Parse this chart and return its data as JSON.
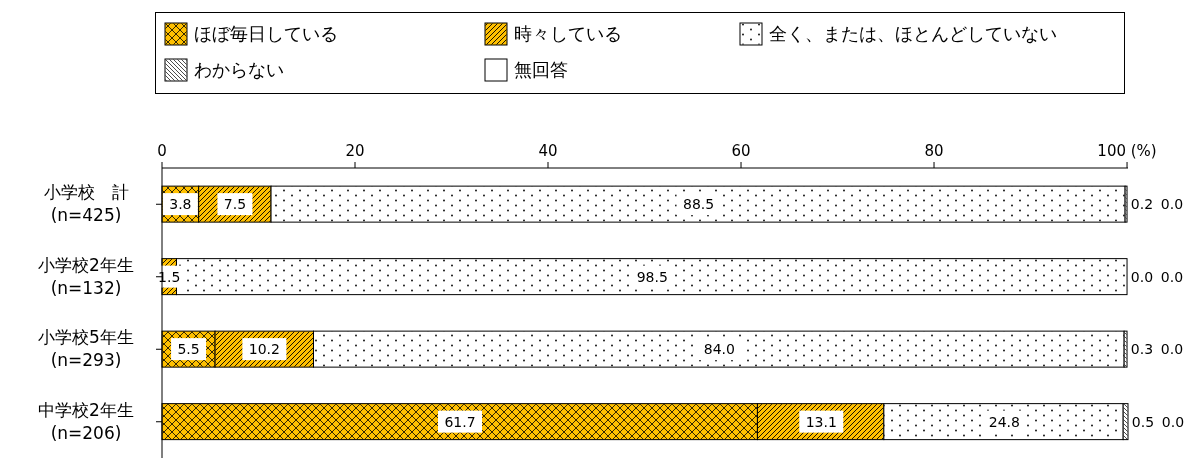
{
  "chart_data": {
    "type": "bar",
    "orientation": "horizontal",
    "stacked": true,
    "legend": "top",
    "categories": [
      "小学校　計\n(n=425)",
      "小学校2年生\n(n=132)",
      "小学校5年生\n(n=293)",
      "中学校2年生\n(n=206)"
    ],
    "series": [
      {
        "name": "ほぼ毎日している",
        "color": "#ffc000",
        "values": [
          3.8,
          0,
          5.5,
          61.7
        ],
        "value_labels": [
          "3.8",
          null,
          "5.5",
          "61.7"
        ]
      },
      {
        "name": "時々している",
        "color": "#ffc000",
        "values": [
          7.5,
          1.5,
          10.2,
          13.1
        ],
        "value_labels": [
          "7.5",
          "1.5",
          "10.2",
          "13.1"
        ]
      },
      {
        "name": "全く、または、ほとんどしていない",
        "color": "#ffffff",
        "values": [
          88.5,
          98.5,
          84.0,
          24.8
        ],
        "value_labels": [
          "88.5",
          "98.5",
          "84.0",
          "24.8"
        ]
      },
      {
        "name": "わからない",
        "color": "#ffffff",
        "values": [
          0.2,
          0.0,
          0.3,
          0.5
        ],
        "value_labels": [
          "0.2",
          "0.0",
          "0.3",
          "0.5"
        ]
      },
      {
        "name": "無回答",
        "color": "#ffffff",
        "values": [
          0.0,
          0.0,
          0.0,
          0.0
        ],
        "value_labels": [
          "0.0",
          "0.0",
          "0.0",
          "0.0"
        ]
      }
    ],
    "xlim": [
      0,
      100
    ],
    "xticks": [
      0,
      20,
      40,
      60,
      {
        "value": 100,
        "label": "100 (%)"
      },
      80
    ],
    "grid": false
  }
}
